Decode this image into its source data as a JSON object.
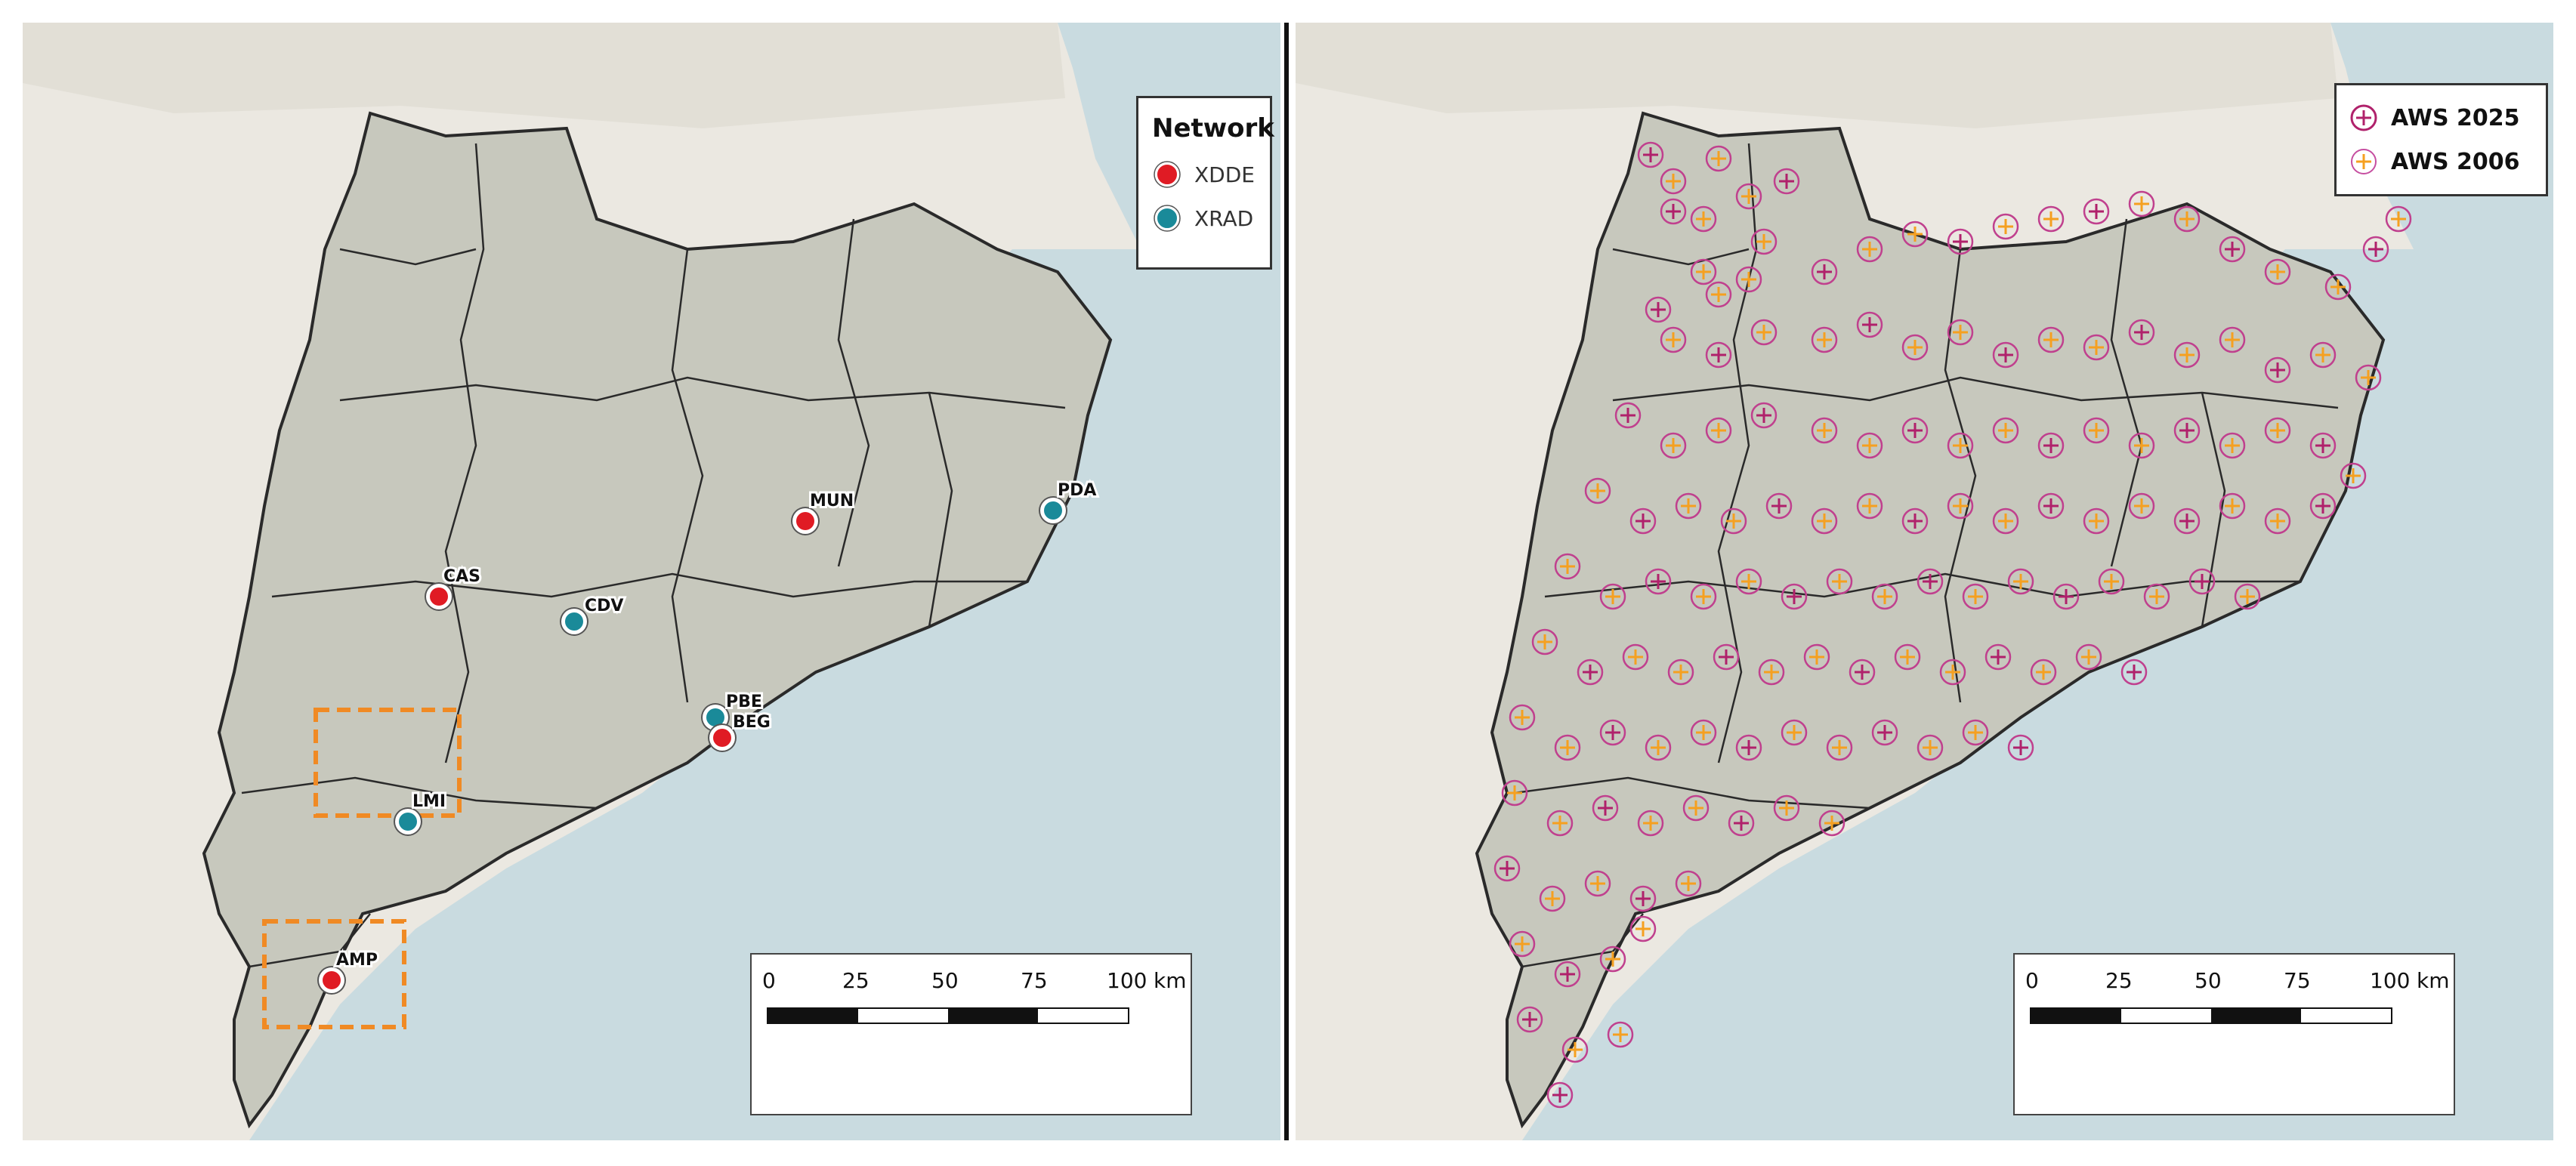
{
  "left_panel": {
    "legend": {
      "title": "Network",
      "items": [
        {
          "label": "XDDE",
          "color": "#e01b24"
        },
        {
          "label": "XRAD",
          "color": "#1a8a99"
        }
      ]
    },
    "sites": [
      {
        "code": "MUN",
        "network": "XDDE"
      },
      {
        "code": "PDA",
        "network": "XRAD"
      },
      {
        "code": "CAS",
        "network": "XDDE"
      },
      {
        "code": "CDV",
        "network": "XRAD"
      },
      {
        "code": "PBE",
        "network": "XRAD"
      },
      {
        "code": "BEG",
        "network": "XDDE"
      },
      {
        "code": "LMI",
        "network": "XRAD"
      },
      {
        "code": "AMP",
        "network": "XDDE"
      }
    ],
    "highlight_boxes_color": "#f08a24",
    "scale_bar": {
      "ticks": [
        "0",
        "25",
        "50",
        "75",
        "100"
      ],
      "unit": "km"
    }
  },
  "right_panel": {
    "legend": {
      "items": [
        {
          "label": "AWS 2025",
          "color": "#b0216b"
        },
        {
          "label": "AWS 2006",
          "color": "#f5a020"
        }
      ]
    },
    "scale_bar": {
      "ticks": [
        "0",
        "25",
        "50",
        "75",
        "100"
      ],
      "unit": "km"
    }
  },
  "colors": {
    "sea": "#c9dbe0",
    "land_outside": "#ebe8e1",
    "region": "#c7c8bd",
    "border": "#2a2a2a"
  }
}
